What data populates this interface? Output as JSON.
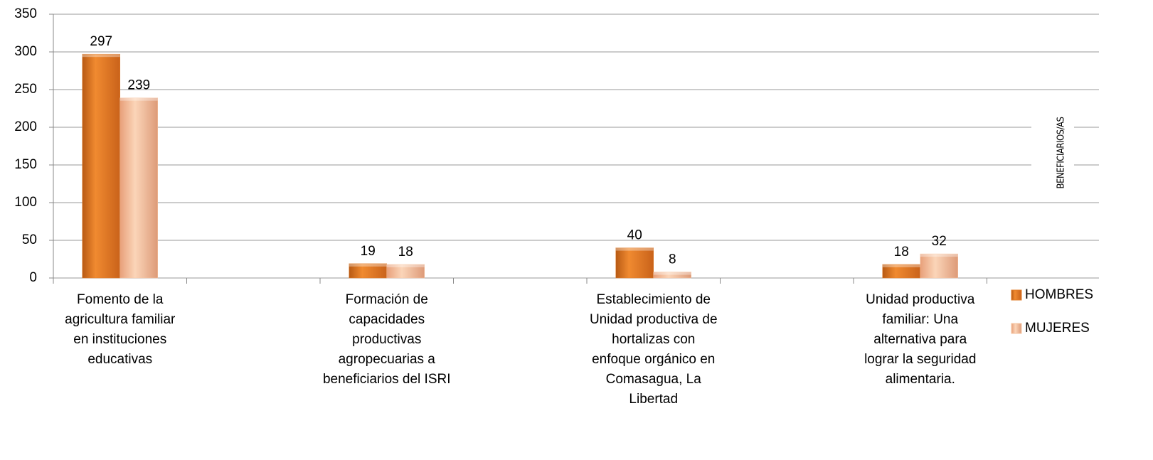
{
  "chart_data": {
    "type": "bar",
    "y_axis_label": "BENEFICIARIOS/AS",
    "categories": [
      "Fomento de la agricultura familiar en instituciones educativas",
      null,
      "Formación de capacidades productivas agropecuarias a beneficiarios del ISRI",
      null,
      "Establecimiento de Unidad productiva de hortalizas con enfoque orgánico en Comasagua, La Libertad",
      null,
      "Unidad productiva familiar: Una alternativa para lograr la seguridad alimentaria.",
      null
    ],
    "series": [
      {
        "name": "HOMBRES",
        "color": "#e07b28",
        "values": [
          297,
          null,
          19,
          null,
          40,
          null,
          18,
          null
        ]
      },
      {
        "name": "MUJERES",
        "color": "#f6c4a0",
        "values": [
          239,
          null,
          18,
          null,
          8,
          null,
          32,
          null
        ]
      }
    ],
    "ylim": [
      0,
      350
    ],
    "yticks": [
      0,
      50,
      100,
      150,
      200,
      250,
      300,
      350
    ],
    "grid": true,
    "legend": "right"
  }
}
